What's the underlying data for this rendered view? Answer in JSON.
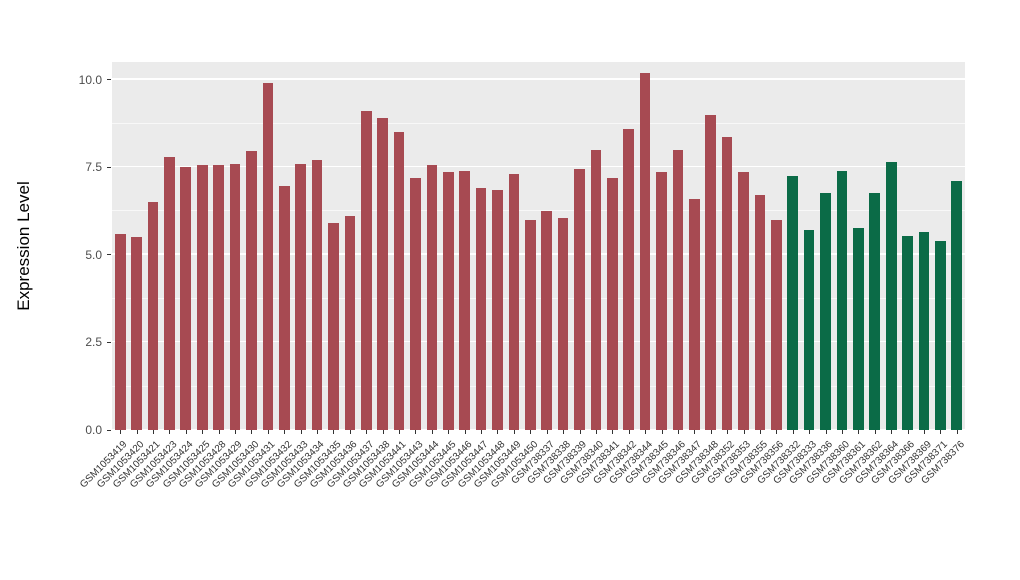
{
  "chart_data": {
    "type": "bar",
    "title": "",
    "xlabel": "",
    "ylabel": "Expression Level",
    "ylim": [
      0,
      10.5
    ],
    "yticks": [
      0,
      2.5,
      5,
      7.5,
      10
    ],
    "ytick_labels": [
      "0.0",
      "2.5",
      "5.0",
      "7.5",
      "10.0"
    ],
    "legend": "none",
    "grid": "white major and minor horizontal gridlines on grey panel",
    "panel_background": "#EBEBEB",
    "series_colors": [
      "#A74A52",
      "#0B6B47"
    ],
    "group_names": [
      "group-red",
      "group-green"
    ],
    "categories": [
      "GSM1053419",
      "GSM1053420",
      "GSM1053421",
      "GSM1053423",
      "GSM1053424",
      "GSM1053425",
      "GSM1053428",
      "GSM1053429",
      "GSM1053430",
      "GSM1053431",
      "GSM1053432",
      "GSM1053433",
      "GSM1053434",
      "GSM1053435",
      "GSM1053436",
      "GSM1053437",
      "GSM1053438",
      "GSM1053441",
      "GSM1053443",
      "GSM1053444",
      "GSM1053445",
      "GSM1053446",
      "GSM1053447",
      "GSM1053448",
      "GSM1053449",
      "GSM1053450",
      "GSM738337",
      "GSM738338",
      "GSM738339",
      "GSM738340",
      "GSM738341",
      "GSM738342",
      "GSM738344",
      "GSM738345",
      "GSM738346",
      "GSM738347",
      "GSM738348",
      "GSM738352",
      "GSM738353",
      "GSM738355",
      "GSM738356",
      "GSM738332",
      "GSM738333",
      "GSM738336",
      "GSM738360",
      "GSM738361",
      "GSM738362",
      "GSM738364",
      "GSM738366",
      "GSM738369",
      "GSM738371",
      "GSM738376"
    ],
    "values": [
      5.6,
      5.5,
      6.5,
      7.8,
      7.5,
      7.55,
      7.55,
      7.6,
      7.95,
      9.9,
      6.95,
      7.6,
      7.7,
      5.9,
      6.1,
      9.1,
      8.9,
      8.5,
      7.2,
      7.55,
      7.35,
      7.4,
      6.9,
      6.85,
      7.3,
      6.0,
      6.25,
      6.05,
      7.45,
      8.0,
      7.2,
      8.6,
      10.2,
      7.35,
      8.0,
      6.6,
      9.0,
      8.35,
      7.35,
      6.7,
      6.0,
      7.25,
      5.7,
      6.75,
      7.4,
      5.75,
      6.75,
      7.65,
      5.55,
      5.65,
      5.4,
      7.1
    ],
    "groups": [
      0,
      0,
      0,
      0,
      0,
      0,
      0,
      0,
      0,
      0,
      0,
      0,
      0,
      0,
      0,
      0,
      0,
      0,
      0,
      0,
      0,
      0,
      0,
      0,
      0,
      0,
      0,
      0,
      0,
      0,
      0,
      0,
      0,
      0,
      0,
      0,
      0,
      0,
      0,
      0,
      0,
      1,
      1,
      1,
      1,
      1,
      1,
      1,
      1,
      1,
      1,
      1
    ]
  }
}
